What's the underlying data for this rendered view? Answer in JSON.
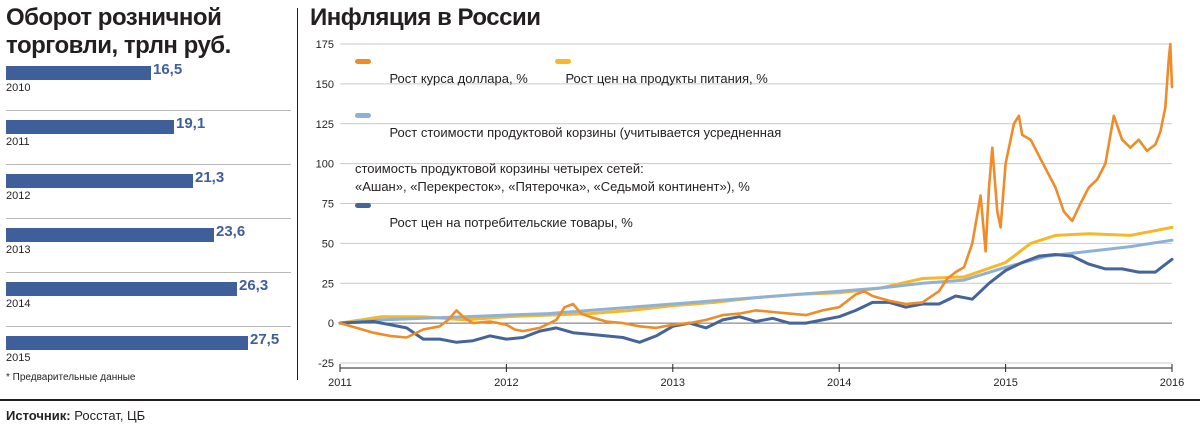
{
  "retail": {
    "title_line1": "Оборот розничной",
    "title_line2": "торговли, трлн руб.",
    "bars": [
      {
        "year": "2010",
        "value": 16.5,
        "label": "16,5"
      },
      {
        "year": "2011",
        "value": 19.1,
        "label": "19,1"
      },
      {
        "year": "2012",
        "value": 21.3,
        "label": "21,3"
      },
      {
        "year": "2013",
        "value": 23.6,
        "label": "23,6"
      },
      {
        "year": "2014",
        "value": 26.3,
        "label": "26,3"
      },
      {
        "year": "2015",
        "value": 27.5,
        "label": "27,5"
      }
    ],
    "footnote": "* Предварительные данные"
  },
  "inflation": {
    "title": "Инфляция в России"
  },
  "legend": {
    "dollar": "Рост курса доллара, %",
    "food": "Рост цен на продукты питания, %",
    "basket_1": "Рост стоимости продуктовой корзины (учитывается усредненная",
    "basket_2": "стоимость продуктовой корзины четырех сетей:",
    "basket_3": "«Ашан», «Перекресток», «Пятерочка», «Седьмой континент»), %",
    "consumer": "Рост цен на потребительские товары, %"
  },
  "colors": {
    "dollar": "#ee8c2a",
    "food": "#f4b829",
    "basket": "#8fb1d6",
    "consumer": "#456598",
    "bar": "#3f5f9b"
  },
  "source": {
    "label": "Источник:",
    "text": " Росстат, ЦБ"
  },
  "chart_data": [
    {
      "type": "bar",
      "title": "Оборот розничной торговли, трлн руб.",
      "categories": [
        "2010",
        "2011",
        "2012",
        "2013",
        "2014",
        "2015"
      ],
      "values": [
        16.5,
        19.1,
        21.3,
        23.6,
        26.3,
        27.5
      ],
      "orientation": "horizontal"
    },
    {
      "type": "line",
      "title": "Инфляция в России",
      "xlim": [
        2011,
        2016
      ],
      "ylim": [
        -25,
        175
      ],
      "xticks": [
        "2011",
        "2012",
        "2013",
        "2014",
        "2015",
        "2016"
      ],
      "yticks": [
        "-25",
        "0",
        "25",
        "50",
        "75",
        "100",
        "125",
        "150",
        "175"
      ],
      "series": [
        {
          "name": "Рост курса доллара, %",
          "key": "dollar",
          "points": [
            [
              2011.0,
              0
            ],
            [
              2011.1,
              -3
            ],
            [
              2011.2,
              -6
            ],
            [
              2011.3,
              -8
            ],
            [
              2011.4,
              -9
            ],
            [
              2011.5,
              -4
            ],
            [
              2011.6,
              -2
            ],
            [
              2011.65,
              2
            ],
            [
              2011.7,
              8
            ],
            [
              2011.75,
              3
            ],
            [
              2011.8,
              0
            ],
            [
              2011.9,
              1
            ],
            [
              2012.0,
              -1
            ],
            [
              2012.05,
              -4
            ],
            [
              2012.1,
              -5
            ],
            [
              2012.2,
              -3
            ],
            [
              2012.3,
              2
            ],
            [
              2012.35,
              10
            ],
            [
              2012.4,
              12
            ],
            [
              2012.45,
              6
            ],
            [
              2012.5,
              4
            ],
            [
              2012.6,
              1
            ],
            [
              2012.7,
              0
            ],
            [
              2012.8,
              -2
            ],
            [
              2012.9,
              -3
            ],
            [
              2013.0,
              -1
            ],
            [
              2013.1,
              0
            ],
            [
              2013.2,
              2
            ],
            [
              2013.3,
              5
            ],
            [
              2013.4,
              6
            ],
            [
              2013.5,
              8
            ],
            [
              2013.6,
              7
            ],
            [
              2013.7,
              6
            ],
            [
              2013.8,
              5
            ],
            [
              2013.9,
              8
            ],
            [
              2014.0,
              10
            ],
            [
              2014.1,
              18
            ],
            [
              2014.15,
              20
            ],
            [
              2014.2,
              17
            ],
            [
              2014.3,
              14
            ],
            [
              2014.4,
              12
            ],
            [
              2014.5,
              13
            ],
            [
              2014.6,
              20
            ],
            [
              2014.65,
              28
            ],
            [
              2014.7,
              32
            ],
            [
              2014.75,
              35
            ],
            [
              2014.8,
              50
            ],
            [
              2014.85,
              80
            ],
            [
              2014.88,
              45
            ],
            [
              2014.9,
              85
            ],
            [
              2014.92,
              110
            ],
            [
              2014.95,
              70
            ],
            [
              2014.97,
              60
            ],
            [
              2015.0,
              100
            ],
            [
              2015.05,
              125
            ],
            [
              2015.08,
              130
            ],
            [
              2015.1,
              118
            ],
            [
              2015.15,
              115
            ],
            [
              2015.2,
              105
            ],
            [
              2015.25,
              95
            ],
            [
              2015.3,
              85
            ],
            [
              2015.35,
              70
            ],
            [
              2015.4,
              64
            ],
            [
              2015.45,
              75
            ],
            [
              2015.5,
              85
            ],
            [
              2015.55,
              90
            ],
            [
              2015.6,
              100
            ],
            [
              2015.65,
              130
            ],
            [
              2015.7,
              115
            ],
            [
              2015.75,
              110
            ],
            [
              2015.8,
              115
            ],
            [
              2015.85,
              108
            ],
            [
              2015.9,
              112
            ],
            [
              2015.93,
              120
            ],
            [
              2015.96,
              135
            ],
            [
              2015.98,
              165
            ],
            [
              2015.99,
              175
            ],
            [
              2016.0,
              148
            ]
          ]
        },
        {
          "name": "Рост цен на продукты питания, %",
          "key": "food",
          "points": [
            [
              2011.0,
              0
            ],
            [
              2011.25,
              4
            ],
            [
              2011.5,
              4
            ],
            [
              2011.75,
              2
            ],
            [
              2012.0,
              4
            ],
            [
              2012.25,
              5
            ],
            [
              2012.5,
              6
            ],
            [
              2012.75,
              8
            ],
            [
              2013.0,
              11
            ],
            [
              2013.25,
              13
            ],
            [
              2013.5,
              16
            ],
            [
              2013.75,
              18
            ],
            [
              2014.0,
              19
            ],
            [
              2014.25,
              22
            ],
            [
              2014.5,
              28
            ],
            [
              2014.75,
              29
            ],
            [
              2015.0,
              38
            ],
            [
              2015.15,
              50
            ],
            [
              2015.3,
              55
            ],
            [
              2015.5,
              56
            ],
            [
              2015.75,
              55
            ],
            [
              2016.0,
              60
            ]
          ]
        },
        {
          "name": "Рост стоимости продуктовой корзины, %",
          "key": "basket",
          "points": [
            [
              2011.0,
              0
            ],
            [
              2011.25,
              2
            ],
            [
              2011.5,
              3
            ],
            [
              2011.75,
              4
            ],
            [
              2012.0,
              5
            ],
            [
              2012.25,
              6
            ],
            [
              2012.5,
              8
            ],
            [
              2012.75,
              10
            ],
            [
              2013.0,
              12
            ],
            [
              2013.25,
              14
            ],
            [
              2013.5,
              16
            ],
            [
              2013.75,
              18
            ],
            [
              2014.0,
              20
            ],
            [
              2014.25,
              22
            ],
            [
              2014.5,
              25
            ],
            [
              2014.75,
              27
            ],
            [
              2015.0,
              35
            ],
            [
              2015.25,
              42
            ],
            [
              2015.5,
              45
            ],
            [
              2015.75,
              48
            ],
            [
              2016.0,
              52
            ]
          ]
        },
        {
          "name": "Рост цен на потребительские товары, %",
          "key": "consumer",
          "points": [
            [
              2011.0,
              0
            ],
            [
              2011.2,
              1
            ],
            [
              2011.4,
              -3
            ],
            [
              2011.5,
              -10
            ],
            [
              2011.6,
              -10
            ],
            [
              2011.7,
              -12
            ],
            [
              2011.8,
              -11
            ],
            [
              2011.9,
              -8
            ],
            [
              2012.0,
              -10
            ],
            [
              2012.1,
              -9
            ],
            [
              2012.2,
              -5
            ],
            [
              2012.3,
              -3
            ],
            [
              2012.4,
              -6
            ],
            [
              2012.5,
              -7
            ],
            [
              2012.6,
              -8
            ],
            [
              2012.7,
              -9
            ],
            [
              2012.8,
              -12
            ],
            [
              2012.9,
              -8
            ],
            [
              2013.0,
              -2
            ],
            [
              2013.1,
              0
            ],
            [
              2013.2,
              -3
            ],
            [
              2013.3,
              2
            ],
            [
              2013.4,
              4
            ],
            [
              2013.5,
              1
            ],
            [
              2013.6,
              3
            ],
            [
              2013.7,
              0
            ],
            [
              2013.8,
              0
            ],
            [
              2013.9,
              2
            ],
            [
              2014.0,
              4
            ],
            [
              2014.1,
              8
            ],
            [
              2014.2,
              13
            ],
            [
              2014.3,
              13
            ],
            [
              2014.4,
              10
            ],
            [
              2014.5,
              12
            ],
            [
              2014.6,
              12
            ],
            [
              2014.7,
              17
            ],
            [
              2014.8,
              15
            ],
            [
              2014.9,
              25
            ],
            [
              2015.0,
              33
            ],
            [
              2015.1,
              38
            ],
            [
              2015.2,
              42
            ],
            [
              2015.3,
              43
            ],
            [
              2015.4,
              42
            ],
            [
              2015.5,
              37
            ],
            [
              2015.6,
              34
            ],
            [
              2015.7,
              34
            ],
            [
              2015.8,
              32
            ],
            [
              2015.9,
              32
            ],
            [
              2016.0,
              40
            ]
          ]
        }
      ]
    }
  ]
}
